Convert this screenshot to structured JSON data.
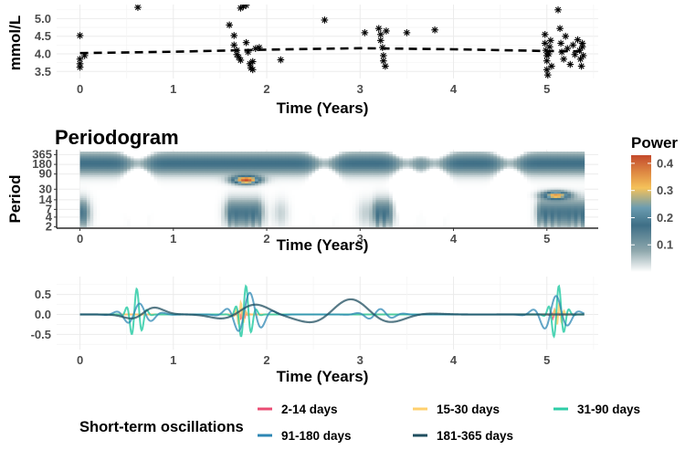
{
  "chart_data": [
    {
      "type": "scatter",
      "ylabel": "mmol/L",
      "xlabel": "Time (Years)",
      "xlim": [
        -0.25,
        5.55
      ],
      "ylim": [
        3.3,
        5.4
      ],
      "x_ticks": [
        0,
        1,
        2,
        3,
        4,
        5
      ],
      "y_ticks": [
        3.5,
        4.0,
        4.5,
        5.0
      ],
      "y_tick_labels": [
        "3.5",
        "4.0",
        "4.5",
        "5.0"
      ],
      "grid": true,
      "points": [
        [
          0.0,
          4.52
        ],
        [
          0.0,
          3.85
        ],
        [
          0.0,
          3.72
        ],
        [
          0.0,
          3.62
        ],
        [
          0.05,
          3.95
        ],
        [
          0.62,
          5.32
        ],
        [
          1.6,
          4.82
        ],
        [
          1.65,
          4.52
        ],
        [
          1.65,
          4.25
        ],
        [
          1.68,
          4.1
        ],
        [
          1.68,
          3.98
        ],
        [
          1.7,
          3.9
        ],
        [
          1.72,
          3.82
        ],
        [
          1.72,
          5.3
        ],
        [
          1.75,
          5.35
        ],
        [
          1.78,
          5.38
        ],
        [
          1.78,
          4.32
        ],
        [
          1.8,
          4.05
        ],
        [
          1.82,
          3.72
        ],
        [
          1.83,
          3.6
        ],
        [
          1.85,
          3.55
        ],
        [
          1.85,
          3.78
        ],
        [
          1.88,
          4.15
        ],
        [
          1.92,
          4.18
        ],
        [
          2.15,
          3.83
        ],
        [
          2.62,
          4.96
        ],
        [
          3.05,
          4.6
        ],
        [
          3.2,
          4.72
        ],
        [
          3.22,
          4.55
        ],
        [
          3.22,
          4.38
        ],
        [
          3.24,
          4.18
        ],
        [
          3.25,
          3.95
        ],
        [
          3.25,
          3.8
        ],
        [
          3.27,
          3.65
        ],
        [
          3.28,
          4.65
        ],
        [
          3.5,
          4.6
        ],
        [
          3.8,
          4.68
        ],
        [
          4.98,
          4.55
        ],
        [
          4.98,
          4.3
        ],
        [
          4.99,
          4.1
        ],
        [
          5.0,
          3.95
        ],
        [
          5.0,
          3.8
        ],
        [
          5.0,
          3.55
        ],
        [
          5.01,
          3.4
        ],
        [
          5.02,
          4.0
        ],
        [
          5.03,
          4.2
        ],
        [
          5.04,
          4.38
        ],
        [
          5.05,
          3.65
        ],
        [
          5.12,
          5.25
        ],
        [
          5.14,
          4.72
        ],
        [
          5.15,
          4.3
        ],
        [
          5.16,
          4.05
        ],
        [
          5.18,
          3.85
        ],
        [
          5.2,
          4.5
        ],
        [
          5.22,
          4.15
        ],
        [
          5.25,
          3.7
        ],
        [
          5.28,
          4.25
        ],
        [
          5.3,
          3.98
        ],
        [
          5.33,
          4.4
        ],
        [
          5.35,
          4.1
        ],
        [
          5.36,
          3.85
        ],
        [
          5.37,
          3.65
        ],
        [
          5.38,
          4.3
        ],
        [
          5.38,
          4.2
        ],
        [
          5.39,
          3.95
        ]
      ],
      "trend": [
        [
          0.0,
          4.02
        ],
        [
          1.0,
          4.06
        ],
        [
          2.0,
          4.12
        ],
        [
          3.0,
          4.16
        ],
        [
          4.0,
          4.13
        ],
        [
          5.0,
          4.08
        ],
        [
          5.38,
          4.07
        ]
      ]
    },
    {
      "type": "heatmap",
      "title": "Periodogram",
      "xlabel": "Time (Years)",
      "ylabel": "Period",
      "x_ticks": [
        0,
        1,
        2,
        3,
        4,
        5
      ],
      "y_tick_labels": [
        "365",
        "180",
        "90",
        "30",
        "14",
        "7",
        "4",
        "2"
      ],
      "y_tick_values": [
        365,
        180,
        90,
        30,
        14,
        7,
        4,
        2
      ],
      "log_y": true,
      "colorbar": {
        "title": "Power",
        "ticks": [
          "0.4",
          "0.3",
          "0.2",
          "0.1"
        ],
        "tick_values": [
          0.4,
          0.3,
          0.2,
          0.1
        ],
        "range": [
          0.0,
          0.43
        ]
      },
      "hotspots": [
        {
          "x": 1.78,
          "period": 60,
          "power": 0.42
        },
        {
          "x": 5.1,
          "period": 20,
          "power": 0.33
        }
      ]
    },
    {
      "type": "line",
      "xlabel": "Time (Years)",
      "x_ticks": [
        0,
        1,
        2,
        3,
        4,
        5
      ],
      "y_ticks": [
        -0.5,
        0.0,
        0.5
      ],
      "y_tick_labels": [
        "-0.5",
        "0.0",
        "0.5"
      ],
      "ylim": [
        -0.88,
        0.95
      ],
      "legend_title": "Short-term oscillations",
      "legend_position": "bottom",
      "series": [
        {
          "name": "2-14 days",
          "color": "#ea4c73"
        },
        {
          "name": "15-30 days",
          "color": "#ffd06e"
        },
        {
          "name": "31-90 days",
          "color": "#2ecda7"
        },
        {
          "name": "91-180 days",
          "color": "#2d87b4"
        },
        {
          "name": "181-365 days",
          "color": "#1f4e5f"
        }
      ]
    }
  ]
}
